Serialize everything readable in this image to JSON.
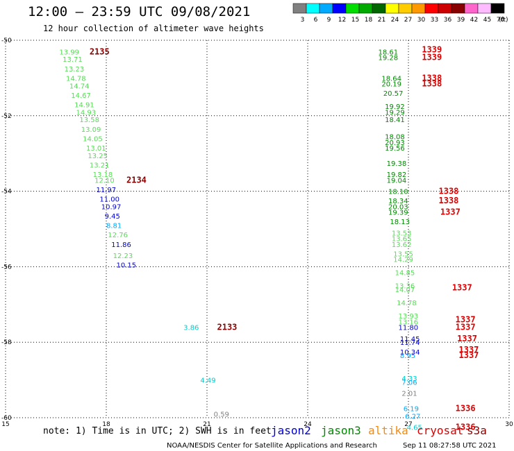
{
  "title": "12:00 – 23:59 UTC 09/08/2021",
  "subtitle": "12 hour collection of altimeter wave heights",
  "note": "note: 1) Time is in UTC; 2) SWH is in feet",
  "credit": "NOAA/NESDIS Center for Satellite Applications and Research",
  "timestamp": "Sep 11 08:27:58 UTC 2021",
  "satellites": [
    {
      "name": "jason2",
      "color": "#0000cc"
    },
    {
      "name": "jason3",
      "color": "#008800"
    },
    {
      "name": "altika",
      "color": "#ff8800"
    },
    {
      "name": "cryosat",
      "color": "#dd0000"
    },
    {
      "name": "s3a",
      "color": "#880000"
    }
  ],
  "colorbar": {
    "labels": [
      "3",
      "6",
      "9",
      "12",
      "15",
      "18",
      "21",
      "24",
      "27",
      "30",
      "33",
      "36",
      "39",
      "42",
      "45",
      "70"
    ],
    "unit": "(ft)",
    "colors": [
      "#808080",
      "#00ffff",
      "#00aaff",
      "#0000ff",
      "#00dd00",
      "#00aa00",
      "#006600",
      "#ffff00",
      "#ffcc00",
      "#ff9900",
      "#ff0000",
      "#cc0000",
      "#880000",
      "#ff66cc",
      "#ffbbff",
      "#000000"
    ]
  },
  "chart_data": {
    "type": "scatter",
    "title": "12:00 – 23:59 UTC 09/08/2021",
    "subtitle": "12 hour collection of altimeter wave heights",
    "xlim": [
      15,
      30
    ],
    "ylim": [
      -60,
      -50
    ],
    "xticks": [
      "15",
      "18",
      "21",
      "24",
      "27",
      "30"
    ],
    "yticks": [
      "-50",
      "-52",
      "-54",
      "-56",
      "-58",
      "-60"
    ],
    "grid": true,
    "points": [
      {
        "x": 16.6,
        "y": -50.3,
        "v": "13.99",
        "c": "#55dd55"
      },
      {
        "x": 16.7,
        "y": -50.5,
        "v": "13.71",
        "c": "#55dd55"
      },
      {
        "x": 16.75,
        "y": -50.75,
        "v": "13.23",
        "c": "#55dd55"
      },
      {
        "x": 16.8,
        "y": -51.0,
        "v": "14.78",
        "c": "#55dd55"
      },
      {
        "x": 16.9,
        "y": -51.2,
        "v": "14.74",
        "c": "#55dd55"
      },
      {
        "x": 16.95,
        "y": -51.45,
        "v": "14.67",
        "c": "#55dd55"
      },
      {
        "x": 17.05,
        "y": -51.7,
        "v": "14.91",
        "c": "#55dd55"
      },
      {
        "x": 17.1,
        "y": -51.9,
        "v": "14.93",
        "c": "#55dd55"
      },
      {
        "x": 17.2,
        "y": -52.1,
        "v": "13.58",
        "c": "#55dd55"
      },
      {
        "x": 17.25,
        "y": -52.35,
        "v": "13.09",
        "c": "#55dd55"
      },
      {
        "x": 17.3,
        "y": -52.6,
        "v": "14.05",
        "c": "#55dd55"
      },
      {
        "x": 17.4,
        "y": -52.85,
        "v": "13.01",
        "c": "#55dd55"
      },
      {
        "x": 17.45,
        "y": -53.05,
        "v": "13.25",
        "c": "#55dd55"
      },
      {
        "x": 17.5,
        "y": -53.3,
        "v": "13.21",
        "c": "#55dd55"
      },
      {
        "x": 17.6,
        "y": -53.55,
        "v": "13.18",
        "c": "#55dd55"
      },
      {
        "x": 17.65,
        "y": -53.7,
        "v": "12.10",
        "c": "#55dd55"
      },
      {
        "x": 17.7,
        "y": -53.95,
        "v": "11.97",
        "c": "#0000cc"
      },
      {
        "x": 17.8,
        "y": -54.2,
        "v": "11.00",
        "c": "#0000cc"
      },
      {
        "x": 17.85,
        "y": -54.4,
        "v": "10.97",
        "c": "#0000cc"
      },
      {
        "x": 17.95,
        "y": -54.65,
        "v": "9.45",
        "c": "#0000cc"
      },
      {
        "x": 18.0,
        "y": -54.9,
        "v": "8.81",
        "c": "#00aaff"
      },
      {
        "x": 18.05,
        "y": -55.15,
        "v": "12.76",
        "c": "#55dd55"
      },
      {
        "x": 18.15,
        "y": -55.4,
        "v": "11.86",
        "c": "#0000cc"
      },
      {
        "x": 18.2,
        "y": -55.7,
        "v": "12.23",
        "c": "#55dd55"
      },
      {
        "x": 18.3,
        "y": -55.95,
        "v": "10.15",
        "c": "#0000cc"
      },
      {
        "x": 20.3,
        "y": -57.6,
        "v": "3.86",
        "c": "#00cccc"
      },
      {
        "x": 20.8,
        "y": -59.0,
        "v": "4.49",
        "c": "#00cccc"
      },
      {
        "x": 21.2,
        "y": -59.9,
        "v": "0.59",
        "c": "#808080"
      },
      {
        "x": 26.1,
        "y": -50.3,
        "v": "18.61",
        "c": "#008800"
      },
      {
        "x": 26.1,
        "y": -50.45,
        "v": "19.28",
        "c": "#008800"
      },
      {
        "x": 26.2,
        "y": -51.0,
        "v": "18.64",
        "c": "#008800"
      },
      {
        "x": 26.2,
        "y": -51.15,
        "v": "20.19",
        "c": "#008800"
      },
      {
        "x": 26.25,
        "y": -51.4,
        "v": "20.57",
        "c": "#008800"
      },
      {
        "x": 26.3,
        "y": -51.75,
        "v": "19.92",
        "c": "#008800"
      },
      {
        "x": 26.3,
        "y": -51.9,
        "v": "19.29",
        "c": "#008800"
      },
      {
        "x": 26.3,
        "y": -52.1,
        "v": "18.41",
        "c": "#008800"
      },
      {
        "x": 26.3,
        "y": -52.55,
        "v": "18.08",
        "c": "#008800"
      },
      {
        "x": 26.3,
        "y": -52.7,
        "v": "20.93",
        "c": "#008800"
      },
      {
        "x": 26.3,
        "y": -52.85,
        "v": "19.56",
        "c": "#008800"
      },
      {
        "x": 26.35,
        "y": -53.25,
        "v": "19.38",
        "c": "#008800"
      },
      {
        "x": 26.35,
        "y": -53.55,
        "v": "19.82",
        "c": "#008800"
      },
      {
        "x": 26.35,
        "y": -53.7,
        "v": "19.04",
        "c": "#008800"
      },
      {
        "x": 26.4,
        "y": -54.0,
        "v": "18.10",
        "c": "#008800"
      },
      {
        "x": 26.4,
        "y": -54.25,
        "v": "18.34",
        "c": "#008800"
      },
      {
        "x": 26.4,
        "y": -54.4,
        "v": "20.03",
        "c": "#008800"
      },
      {
        "x": 26.4,
        "y": -54.55,
        "v": "19.39",
        "c": "#008800"
      },
      {
        "x": 26.45,
        "y": -54.8,
        "v": "18.13",
        "c": "#008800"
      },
      {
        "x": 26.5,
        "y": -55.1,
        "v": "13.53",
        "c": "#55dd55"
      },
      {
        "x": 26.5,
        "y": -55.25,
        "v": "13.65",
        "c": "#55dd55"
      },
      {
        "x": 26.5,
        "y": -55.4,
        "v": "13.62",
        "c": "#55dd55"
      },
      {
        "x": 26.55,
        "y": -55.65,
        "v": "13.55",
        "c": "#55dd55"
      },
      {
        "x": 26.55,
        "y": -55.8,
        "v": "14.29",
        "c": "#55dd55"
      },
      {
        "x": 26.6,
        "y": -56.15,
        "v": "14.85",
        "c": "#55dd55"
      },
      {
        "x": 26.6,
        "y": -56.5,
        "v": "13.36",
        "c": "#55dd55"
      },
      {
        "x": 26.6,
        "y": -56.6,
        "v": "14.07",
        "c": "#55dd55"
      },
      {
        "x": 26.65,
        "y": -56.95,
        "v": "14.78",
        "c": "#55dd55"
      },
      {
        "x": 26.7,
        "y": -57.3,
        "v": "13.93",
        "c": "#55dd55"
      },
      {
        "x": 26.7,
        "y": -57.45,
        "v": "13.16",
        "c": "#55dd55"
      },
      {
        "x": 26.7,
        "y": -57.6,
        "v": "11.80",
        "c": "#0000cc"
      },
      {
        "x": 26.75,
        "y": -57.9,
        "v": "11.45",
        "c": "#0000cc"
      },
      {
        "x": 26.75,
        "y": -58.0,
        "v": "11.74",
        "c": "#0000cc"
      },
      {
        "x": 26.75,
        "y": -58.25,
        "v": "10.34",
        "c": "#0000cc"
      },
      {
        "x": 26.75,
        "y": -58.35,
        "v": "8.95",
        "c": "#00aaff"
      },
      {
        "x": 26.8,
        "y": -58.95,
        "v": "4.33",
        "c": "#00cccc"
      },
      {
        "x": 26.8,
        "y": -59.05,
        "v": "7.06",
        "c": "#00aaff"
      },
      {
        "x": 26.8,
        "y": -59.35,
        "v": "2.01",
        "c": "#808080"
      },
      {
        "x": 26.85,
        "y": -59.75,
        "v": "6.19",
        "c": "#00aaff"
      },
      {
        "x": 26.9,
        "y": -59.95,
        "v": "6.27",
        "c": "#00aaff"
      },
      {
        "x": 26.95,
        "y": -60.25,
        "v": "4.65",
        "c": "#00cccc"
      }
    ],
    "pass_labels": [
      {
        "x": 17.5,
        "y": -50.3,
        "label": "2135",
        "c": "#880000"
      },
      {
        "x": 18.6,
        "y": -53.7,
        "label": "2134",
        "c": "#880000"
      },
      {
        "x": 21.3,
        "y": -57.6,
        "label": "2133",
        "c": "#880000"
      },
      {
        "x": 27.4,
        "y": -50.25,
        "label": "1339",
        "c": "#dd0000"
      },
      {
        "x": 27.4,
        "y": -50.45,
        "label": "1339",
        "c": "#dd0000"
      },
      {
        "x": 27.4,
        "y": -51.0,
        "label": "1338",
        "c": "#dd0000"
      },
      {
        "x": 27.4,
        "y": -51.15,
        "label": "1338",
        "c": "#dd0000"
      },
      {
        "x": 27.9,
        "y": -54.0,
        "label": "1338",
        "c": "#dd0000"
      },
      {
        "x": 27.9,
        "y": -54.25,
        "label": "1338",
        "c": "#dd0000"
      },
      {
        "x": 27.95,
        "y": -54.55,
        "label": "1337",
        "c": "#dd0000"
      },
      {
        "x": 28.3,
        "y": -56.55,
        "label": "1337",
        "c": "#dd0000"
      },
      {
        "x": 28.4,
        "y": -57.4,
        "label": "1337",
        "c": "#dd0000"
      },
      {
        "x": 28.4,
        "y": -57.6,
        "label": "1337",
        "c": "#dd0000"
      },
      {
        "x": 28.45,
        "y": -57.9,
        "label": "1337",
        "c": "#dd0000"
      },
      {
        "x": 28.5,
        "y": -58.2,
        "label": "1337",
        "c": "#dd0000"
      },
      {
        "x": 28.5,
        "y": -58.35,
        "label": "1337",
        "c": "#dd0000"
      },
      {
        "x": 28.4,
        "y": -59.75,
        "label": "1336",
        "c": "#dd0000"
      },
      {
        "x": 28.4,
        "y": -60.25,
        "label": "1336",
        "c": "#dd0000"
      }
    ]
  }
}
